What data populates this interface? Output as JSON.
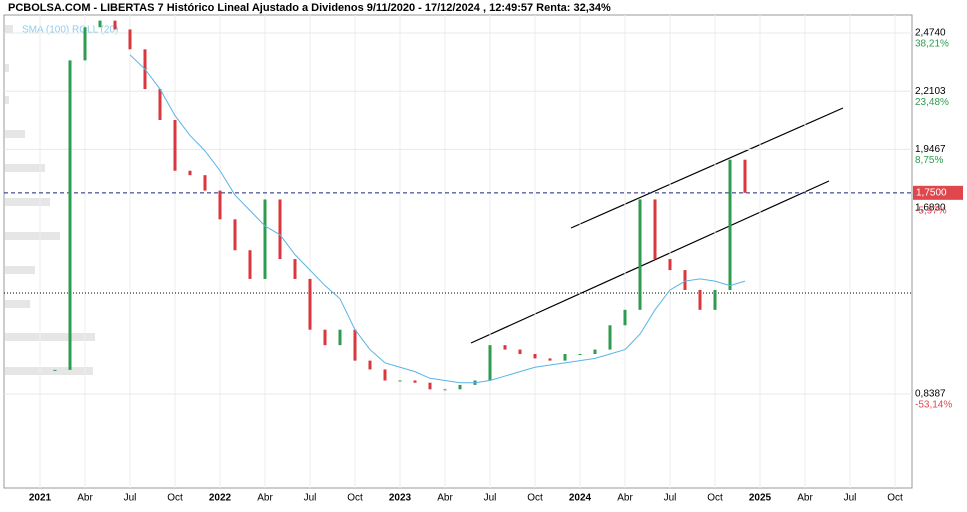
{
  "chart_data": {
    "type": "candlestick",
    "title": "PCBOLSA.COM - LIBERTAS 7 Histórico Lineal Ajustado a Dividenos 9/11/2020 - 17/12/2024 , 12:49:57 Renta: 32,34%",
    "legend_label": "SMA (100) ROLL (20)",
    "x_labels": [
      "2021",
      "Abr",
      "Jul",
      "Oct",
      "2022",
      "Abr",
      "Jul",
      "Oct",
      "2023",
      "Abr",
      "Jul",
      "Oct",
      "2024",
      "Abr",
      "Jul",
      "Oct",
      "2025",
      "Abr",
      "Jul",
      "Oct"
    ],
    "ylim": [
      0.413,
      2.5555
    ],
    "yticks": [
      {
        "value": 2.474,
        "label": "2,4740"
      },
      {
        "value": 2.2103,
        "label": "2,2103"
      },
      {
        "value": 1.9467,
        "label": "1,9467"
      },
      {
        "value": 0.8387,
        "label": "0,8387"
      }
    ],
    "ytick_changes": [
      "38,21%",
      "23,48%",
      "8,75%",
      "-53,14%"
    ],
    "current_price": {
      "value": 1.75,
      "label": "1,7500"
    },
    "current_change": "-5,97%",
    "secondary_price": {
      "value": 1.683,
      "label": "1,6830"
    },
    "reference_line": 1.296,
    "up_color": "#2e9b4f",
    "down_color": "#d9363e",
    "series": [
      {
        "name": "Precio",
        "values": [
          0.948,
          2.35,
          2.5,
          2.53,
          2.49,
          2.4,
          2.22,
          2.08,
          1.85,
          1.83,
          1.76,
          1.63,
          1.49,
          1.36,
          1.72,
          1.45,
          1.36,
          1.13,
          1.06,
          1.13,
          0.99,
          0.95,
          0.9,
          0.9,
          0.89,
          0.86,
          0.86,
          0.88,
          0.9,
          1.06,
          1.04,
          1.02,
          1.0,
          0.99,
          1.02,
          1.02,
          1.04,
          1.15,
          1.22,
          1.72,
          1.45,
          1.4,
          1.31,
          1.22,
          1.31,
          1.9,
          1.75
        ]
      },
      {
        "name": "SMA (100)",
        "color": "#5ab4e6",
        "values": [
          null,
          null,
          null,
          null,
          null,
          2.375,
          2.31,
          2.22,
          2.1,
          2.01,
          1.94,
          1.85,
          1.74,
          1.67,
          1.6,
          1.56,
          1.47,
          1.4,
          1.33,
          1.27,
          1.13,
          1.04,
          0.98,
          0.96,
          0.94,
          0.91,
          0.9,
          0.89,
          0.89,
          0.9,
          0.92,
          0.94,
          0.96,
          0.97,
          0.98,
          0.99,
          1.0,
          1.02,
          1.04,
          1.11,
          1.22,
          1.31,
          1.35,
          1.36,
          1.35,
          1.33,
          1.35
        ]
      }
    ]
  }
}
